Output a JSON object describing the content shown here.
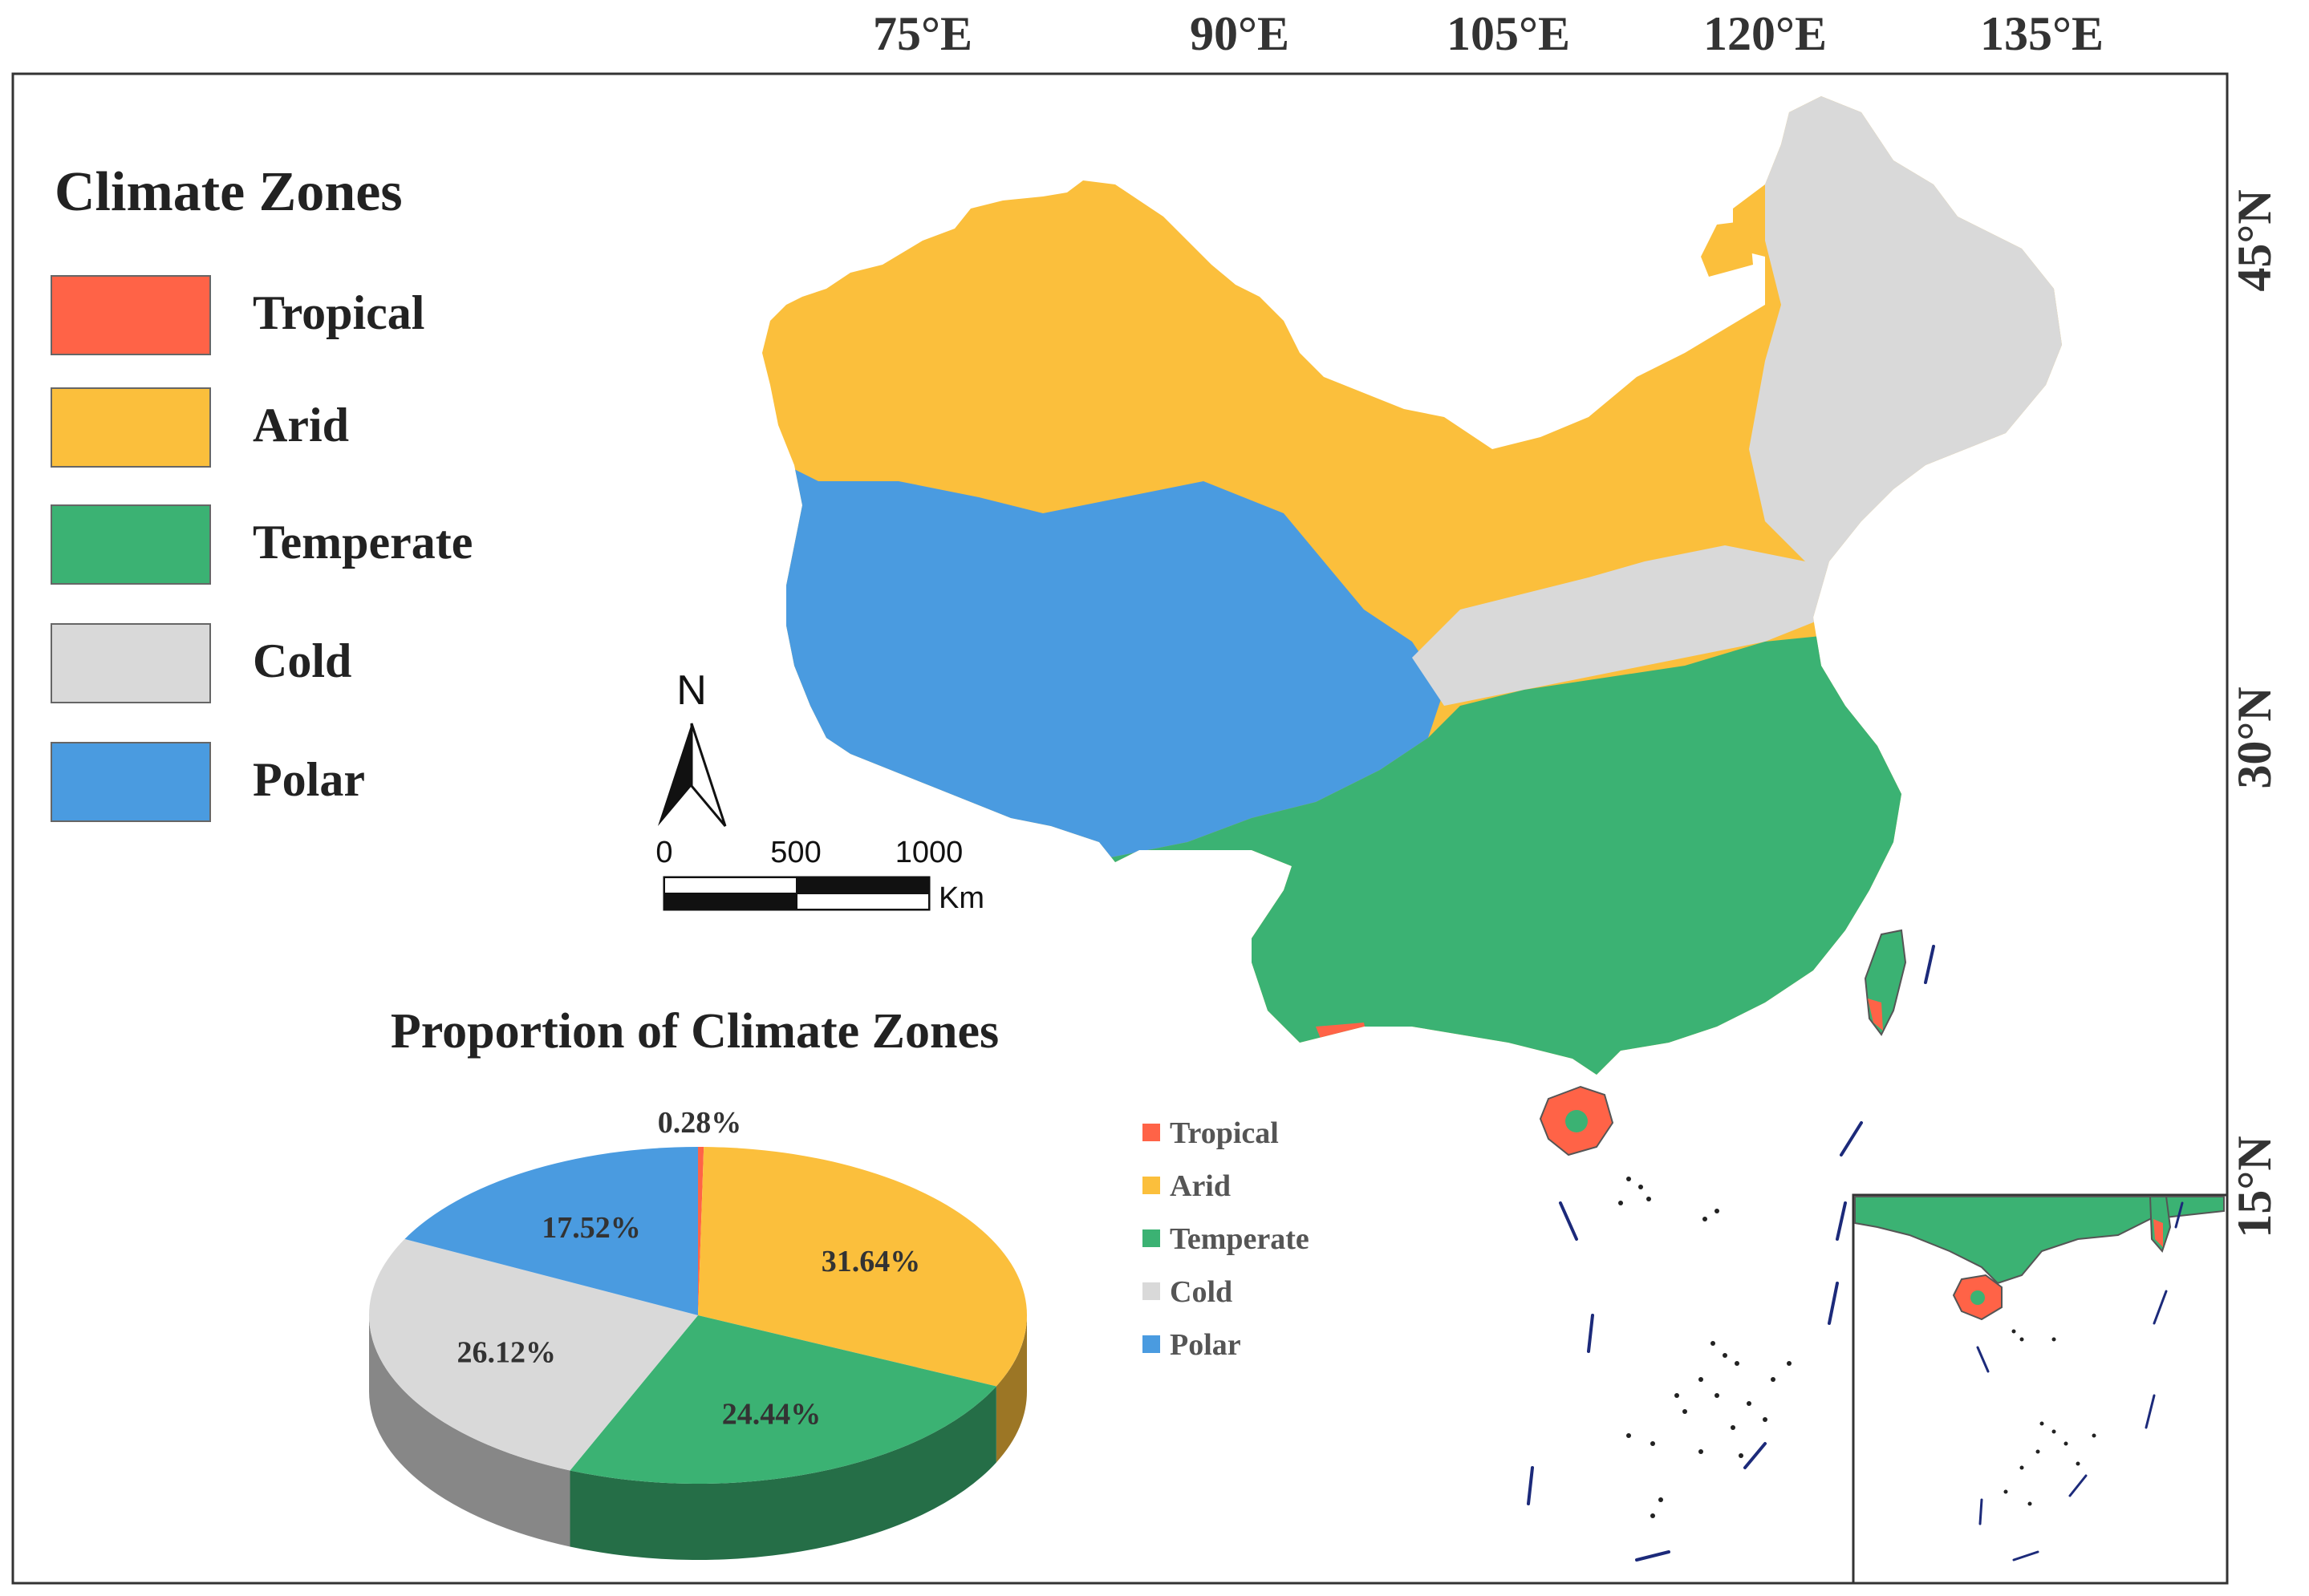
{
  "map": {
    "longitude_labels": [
      "75°E",
      "90°E",
      "105°E",
      "120°E",
      "135°E"
    ],
    "latitude_labels": [
      "45°N",
      "30°N",
      "15°N"
    ]
  },
  "legend": {
    "title": "Climate Zones",
    "items": [
      {
        "label": "Tropical",
        "color": "#FF6347"
      },
      {
        "label": "Arid",
        "color": "#FBBF3C"
      },
      {
        "label": "Temperate",
        "color": "#3BB273"
      },
      {
        "label": "Cold",
        "color": "#D9D9D9"
      },
      {
        "label": "Polar",
        "color": "#4A9BE0"
      }
    ]
  },
  "north_arrow": {
    "label": "N"
  },
  "scale_bar": {
    "ticks": [
      "0",
      "500",
      "1000"
    ],
    "unit": "Km"
  },
  "chart_data": {
    "type": "pie",
    "title": "Proportion of Climate Zones",
    "slices": [
      {
        "label": "Tropical",
        "value": 0.28,
        "display": "0.28%",
        "color": "#FF6347"
      },
      {
        "label": "Arid",
        "value": 31.64,
        "display": "31.64%",
        "color": "#FBBF3C"
      },
      {
        "label": "Temperate",
        "value": 24.44,
        "display": "24.44%",
        "color": "#3BB273"
      },
      {
        "label": "Cold",
        "value": 26.12,
        "display": "26.12%",
        "color": "#D9D9D9"
      },
      {
        "label": "Polar",
        "value": 17.52,
        "display": "17.52%",
        "color": "#4A9BE0"
      }
    ],
    "legend_placement": "right"
  }
}
